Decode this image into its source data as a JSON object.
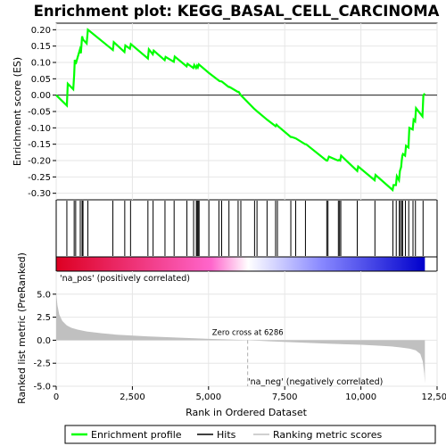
{
  "chart_data": {
    "type": "line",
    "title": "Enrichment plot: KEGG_BASAL_CELL_CARCINOMA",
    "top_panel": {
      "ylabel": "Enrichment score (ES)",
      "ylim": [
        -0.32,
        0.22
      ],
      "yticks": [
        -0.3,
        -0.25,
        -0.2,
        -0.15,
        -0.1,
        -0.05,
        0.0,
        0.05,
        0.1,
        0.15,
        0.2
      ],
      "ytick_labels": [
        "-0.30",
        "-0.25",
        "-0.20",
        "-0.15",
        "-0.10",
        "-0.05",
        "0.00",
        "0.05",
        "0.10",
        "0.15",
        "0.20"
      ],
      "series": [
        {
          "name": "Enrichment profile",
          "color": "#00ff00",
          "x": [
            0,
            350,
            380,
            560,
            590,
            610,
            640,
            780,
            810,
            850,
            880,
            1000,
            1040,
            1860,
            1890,
            2240,
            2270,
            2420,
            2450,
            3010,
            3040,
            3170,
            3200,
            3560,
            3590,
            3860,
            3890,
            4280,
            4310,
            4500,
            4530,
            4590,
            4620,
            4650,
            4680,
            5010,
            5330,
            5360,
            5430,
            5660,
            5690,
            5960,
            5990,
            6060,
            6500,
            6530,
            6600,
            6920,
            7200,
            7230,
            7280,
            7700,
            7730,
            7860,
            8170,
            8200,
            8870,
            8900,
            8950,
            9250,
            9280,
            9320,
            9350,
            9880,
            9910,
            10450,
            10480,
            11040,
            11070,
            11150,
            11180,
            11250,
            11280,
            11320,
            11340,
            11360,
            11380,
            11450,
            11480,
            11560,
            11590,
            11700,
            11730,
            11780,
            11810,
            12020,
            12050,
            12100
          ],
          "y": [
            0.0,
            -0.032,
            0.035,
            0.018,
            0.062,
            0.108,
            0.095,
            0.14,
            0.128,
            0.18,
            0.17,
            0.158,
            0.2,
            0.138,
            0.162,
            0.132,
            0.152,
            0.142,
            0.156,
            0.112,
            0.14,
            0.125,
            0.136,
            0.107,
            0.117,
            0.102,
            0.118,
            0.088,
            0.096,
            0.083,
            0.092,
            0.083,
            0.09,
            0.085,
            0.094,
            0.068,
            0.045,
            0.043,
            0.042,
            0.025,
            0.025,
            0.01,
            0.01,
            0.0,
            -0.042,
            -0.044,
            -0.05,
            -0.075,
            -0.095,
            -0.09,
            -0.095,
            -0.128,
            -0.128,
            -0.132,
            -0.15,
            -0.15,
            -0.2,
            -0.2,
            -0.188,
            -0.2,
            -0.198,
            -0.2,
            -0.185,
            -0.232,
            -0.218,
            -0.26,
            -0.244,
            -0.29,
            -0.275,
            -0.275,
            -0.248,
            -0.26,
            -0.232,
            -0.22,
            -0.2,
            -0.185,
            -0.18,
            -0.185,
            -0.155,
            -0.16,
            -0.1,
            -0.105,
            -0.075,
            -0.08,
            -0.04,
            -0.065,
            0.0,
            0.005
          ]
        }
      ]
    },
    "hits_panel": {
      "series_name": "Hits",
      "positions": [
        350,
        590,
        640,
        790,
        850,
        880,
        1040,
        1860,
        2250,
        2440,
        3010,
        3180,
        3570,
        3870,
        4290,
        4510,
        4600,
        4630,
        4660,
        4690,
        5010,
        5340,
        5430,
        5670,
        5970,
        6060,
        6510,
        6590,
        6920,
        7200,
        7260,
        7700,
        7860,
        8180,
        8880,
        8920,
        9260,
        9300,
        9340,
        9880,
        10460,
        11050,
        11160,
        11260,
        11300,
        11350,
        11370,
        11460,
        11570,
        11710,
        11790,
        12040
      ]
    },
    "metric_panel": {
      "series_name": "Ranking metric scores",
      "ylabel": "Ranked list metric (PreRanked)",
      "ylim": [
        -5.0,
        7.5
      ],
      "yticks": [
        -5.0,
        -2.5,
        0.0,
        2.5,
        5.0
      ],
      "ytick_labels": [
        "-5.0",
        "-2.5",
        "0.0",
        "2.5",
        "5.0"
      ],
      "x": [
        0,
        40,
        100,
        200,
        350,
        500,
        700,
        1000,
        1500,
        2000,
        3000,
        4000,
        5000,
        6000,
        6286,
        7000,
        8000,
        9000,
        10000,
        10500,
        11000,
        11300,
        11600,
        11800,
        11950,
        12030,
        12080,
        12100
      ],
      "y": [
        5.2,
        3.8,
        2.8,
        2.1,
        1.6,
        1.35,
        1.15,
        0.95,
        0.75,
        0.6,
        0.42,
        0.28,
        0.15,
        0.04,
        0.0,
        -0.12,
        -0.25,
        -0.38,
        -0.5,
        -0.58,
        -0.68,
        -0.78,
        -0.92,
        -1.1,
        -1.5,
        -2.3,
        -3.6,
        -4.7
      ],
      "fill_color": "#c0c0c0",
      "zero_cross_label": "Zero cross at 6286",
      "zero_cross_x": 6286,
      "pos_label": "'na_pos' (positively correlated)",
      "pos_label_color": "#cc0000",
      "neg_label": "'na_neg' (negatively correlated)",
      "neg_label_color": "#0000cc"
    },
    "xlabel": "Rank in Ordered Dataset",
    "xlim": [
      0,
      12500
    ],
    "xticks": [
      0,
      2500,
      5000,
      7500,
      10000,
      12500
    ],
    "xtick_labels": [
      "0",
      "2,500",
      "5,000",
      "7,500",
      "10,000",
      "12,500"
    ],
    "n_genes": 12100,
    "gradient_colors": [
      "#dd0022",
      "#ff66cc",
      "#ffffff",
      "#8888ff",
      "#0000cc"
    ],
    "legend": [
      {
        "label": "Enrichment profile",
        "color": "#00ff00"
      },
      {
        "label": "Hits",
        "color": "#000000"
      },
      {
        "label": "Ranking metric scores",
        "color": "#c0c0c0"
      }
    ],
    "legend_position": "bottom"
  }
}
